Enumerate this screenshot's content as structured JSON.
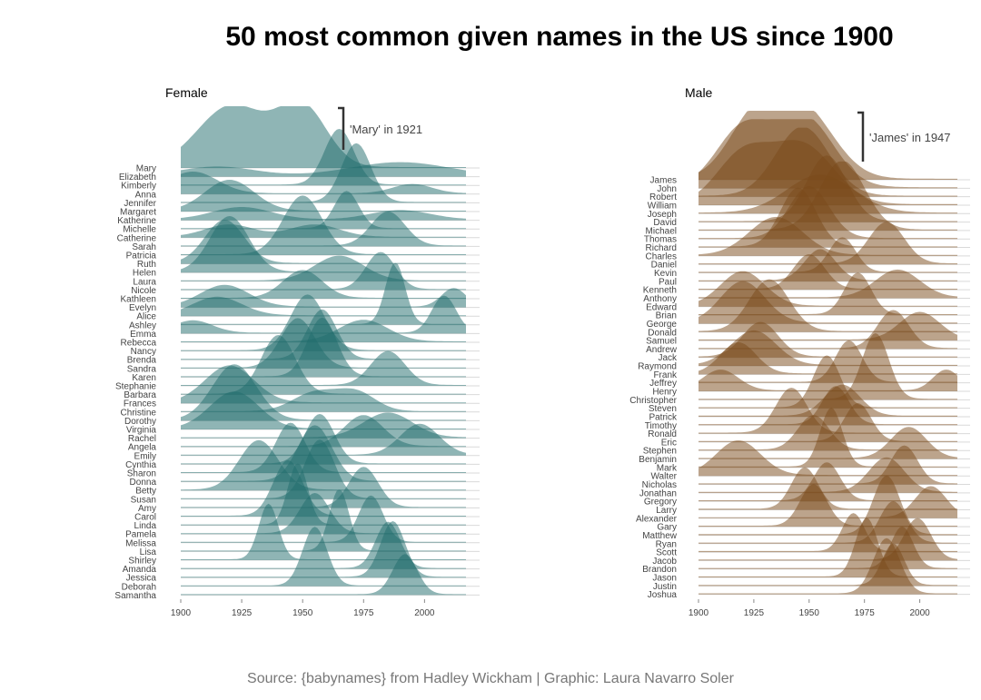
{
  "title": "50 most common given names in the US since 1900",
  "caption": "Source: {babynames} from Hadley Wickham | Graphic: Laura Navarro Soler",
  "chart_data": [
    {
      "type": "area",
      "panel": "Female",
      "color": "#1f6b6b",
      "xlim": [
        1900,
        2017
      ],
      "xticks": [
        1900,
        1925,
        1950,
        1975,
        2000
      ],
      "grid": false,
      "annotation": {
        "text": "'Mary' in 1921",
        "year": 1921
      },
      "series": [
        {
          "name": "Mary",
          "peaks": [
            [
              1921,
              1.0,
              14
            ],
            [
              1950,
              0.95,
              10
            ]
          ]
        },
        {
          "name": "Elizabeth",
          "peaks": [
            [
              1915,
              0.15,
              15
            ],
            [
              1990,
              0.22,
              20
            ]
          ]
        },
        {
          "name": "Kimberly",
          "peaks": [
            [
              1965,
              0.9,
              6
            ]
          ]
        },
        {
          "name": "Anna",
          "peaks": [
            [
              1905,
              0.35,
              10
            ],
            [
              1995,
              0.15,
              8
            ]
          ]
        },
        {
          "name": "Jennifer",
          "peaks": [
            [
              1972,
              0.95,
              6
            ]
          ]
        },
        {
          "name": "Margaret",
          "peaks": [
            [
              1920,
              0.5,
              10
            ]
          ]
        },
        {
          "name": "Katherine",
          "peaks": [
            [
              1925,
              0.2,
              12
            ],
            [
              1990,
              0.15,
              12
            ]
          ]
        },
        {
          "name": "Michelle",
          "peaks": [
            [
              1968,
              0.6,
              5
            ]
          ]
        },
        {
          "name": "Catherine",
          "peaks": [
            [
              1920,
              0.2,
              10
            ],
            [
              1955,
              0.2,
              10
            ]
          ]
        },
        {
          "name": "Sarah",
          "peaks": [
            [
              1985,
              0.55,
              7
            ]
          ]
        },
        {
          "name": "Patricia",
          "peaks": [
            [
              1950,
              0.95,
              8
            ]
          ]
        },
        {
          "name": "Ruth",
          "peaks": [
            [
              1918,
              0.7,
              8
            ]
          ]
        },
        {
          "name": "Helen",
          "peaks": [
            [
              1920,
              0.9,
              8
            ]
          ]
        },
        {
          "name": "Laura",
          "peaks": [
            [
              1965,
              0.4,
              10
            ]
          ]
        },
        {
          "name": "Nicole",
          "peaks": [
            [
              1982,
              0.6,
              6
            ]
          ]
        },
        {
          "name": "Kathleen",
          "peaks": [
            [
              1950,
              0.45,
              8
            ]
          ]
        },
        {
          "name": "Evelyn",
          "peaks": [
            [
              1918,
              0.35,
              10
            ],
            [
              2012,
              0.3,
              5
            ]
          ]
        },
        {
          "name": "Alice",
          "peaks": [
            [
              1915,
              0.3,
              10
            ]
          ]
        },
        {
          "name": "Ashley",
          "peaks": [
            [
              1988,
              1.0,
              4
            ]
          ]
        },
        {
          "name": "Emma",
          "peaks": [
            [
              1905,
              0.2,
              8
            ],
            [
              2008,
              0.6,
              5
            ]
          ]
        },
        {
          "name": "Rebecca",
          "peaks": [
            [
              1975,
              0.35,
              10
            ]
          ]
        },
        {
          "name": "Nancy",
          "peaks": [
            [
              1952,
              0.9,
              7
            ]
          ]
        },
        {
          "name": "Brenda",
          "peaks": [
            [
              1958,
              0.8,
              6
            ]
          ]
        },
        {
          "name": "Sandra",
          "peaks": [
            [
              1948,
              0.8,
              7
            ]
          ]
        },
        {
          "name": "Karen",
          "peaks": [
            [
              1958,
              0.95,
              6
            ]
          ]
        },
        {
          "name": "Stephanie",
          "peaks": [
            [
              1985,
              0.55,
              7
            ]
          ]
        },
        {
          "name": "Barbara",
          "peaks": [
            [
              1940,
              0.95,
              7
            ]
          ]
        },
        {
          "name": "Frances",
          "peaks": [
            [
              1920,
              0.6,
              10
            ]
          ]
        },
        {
          "name": "Christine",
          "peaks": [
            [
              1955,
              0.3,
              9
            ],
            [
              1972,
              0.3,
              8
            ]
          ]
        },
        {
          "name": "Dorothy",
          "peaks": [
            [
              1922,
              0.9,
              9
            ]
          ]
        },
        {
          "name": "Virginia",
          "peaks": [
            [
              1922,
              0.6,
              10
            ]
          ]
        },
        {
          "name": "Rachel",
          "peaks": [
            [
              1985,
              0.4,
              10
            ]
          ]
        },
        {
          "name": "Angela",
          "peaks": [
            [
              1975,
              0.5,
              8
            ]
          ]
        },
        {
          "name": "Emily",
          "peaks": [
            [
              1998,
              0.5,
              8
            ]
          ]
        },
        {
          "name": "Cynthia",
          "peaks": [
            [
              1957,
              0.8,
              6
            ]
          ]
        },
        {
          "name": "Sharon",
          "peaks": [
            [
              1945,
              0.8,
              6
            ]
          ]
        },
        {
          "name": "Donna",
          "peaks": [
            [
              1955,
              0.9,
              7
            ]
          ]
        },
        {
          "name": "Betty",
          "peaks": [
            [
              1932,
              0.8,
              8
            ]
          ]
        },
        {
          "name": "Susan",
          "peaks": [
            [
              1957,
              0.95,
              6
            ]
          ]
        },
        {
          "name": "Amy",
          "peaks": [
            [
              1975,
              0.65,
              6
            ]
          ]
        },
        {
          "name": "Carol",
          "peaks": [
            [
              1944,
              0.9,
              6
            ]
          ]
        },
        {
          "name": "Linda",
          "peaks": [
            [
              1948,
              1.0,
              4
            ]
          ]
        },
        {
          "name": "Pamela",
          "peaks": [
            [
              1955,
              0.65,
              6
            ]
          ]
        },
        {
          "name": "Melissa",
          "peaks": [
            [
              1978,
              0.75,
              5
            ]
          ]
        },
        {
          "name": "Lisa",
          "peaks": [
            [
              1965,
              1.0,
              4
            ]
          ]
        },
        {
          "name": "Shirley",
          "peaks": [
            [
              1936,
              0.9,
              4
            ]
          ]
        },
        {
          "name": "Amanda",
          "peaks": [
            [
              1985,
              0.75,
              5
            ]
          ]
        },
        {
          "name": "Jessica",
          "peaks": [
            [
              1987,
              0.9,
              5
            ]
          ]
        },
        {
          "name": "Deborah",
          "peaks": [
            [
              1955,
              0.95,
              5
            ]
          ]
        },
        {
          "name": "Samantha",
          "peaks": [
            [
              1992,
              0.65,
              5
            ]
          ]
        }
      ]
    },
    {
      "type": "area",
      "panel": "Male",
      "color": "#7a4a1a",
      "xlim": [
        1900,
        2017
      ],
      "xticks": [
        1900,
        1925,
        1950,
        1975,
        2000
      ],
      "grid": false,
      "annotation": {
        "text": "'James' in 1947",
        "year": 1947
      },
      "series": [
        {
          "name": "James",
          "peaks": [
            [
              1947,
              1.0,
              14
            ],
            [
              1925,
              0.8,
              12
            ]
          ]
        },
        {
          "name": "John",
          "peaks": [
            [
              1948,
              1.0,
              13
            ],
            [
              1920,
              0.85,
              12
            ]
          ]
        },
        {
          "name": "Robert",
          "peaks": [
            [
              1947,
              1.0,
              12
            ]
          ]
        },
        {
          "name": "William",
          "peaks": [
            [
              1947,
              0.85,
              14
            ],
            [
              1920,
              0.7,
              12
            ]
          ]
        },
        {
          "name": "Joseph",
          "peaks": [
            [
              1955,
              0.55,
              15
            ]
          ]
        },
        {
          "name": "David",
          "peaks": [
            [
              1958,
              0.95,
              9
            ]
          ]
        },
        {
          "name": "Michael",
          "peaks": [
            [
              1965,
              1.0,
              10
            ]
          ]
        },
        {
          "name": "Thomas",
          "peaks": [
            [
              1950,
              0.75,
              9
            ]
          ]
        },
        {
          "name": "Richard",
          "peaks": [
            [
              1945,
              0.85,
              8
            ]
          ]
        },
        {
          "name": "Charles",
          "peaks": [
            [
              1935,
              0.55,
              12
            ]
          ]
        },
        {
          "name": "Daniel",
          "peaks": [
            [
              1985,
              0.6,
              8
            ]
          ]
        },
        {
          "name": "Kevin",
          "peaks": [
            [
              1965,
              0.5,
              6
            ]
          ]
        },
        {
          "name": "Paul",
          "peaks": [
            [
              1955,
              0.45,
              7
            ]
          ]
        },
        {
          "name": "Kenneth",
          "peaks": [
            [
              1950,
              0.5,
              7
            ]
          ]
        },
        {
          "name": "Anthony",
          "peaks": [
            [
              1990,
              0.4,
              10
            ]
          ]
        },
        {
          "name": "Edward",
          "peaks": [
            [
              1920,
              0.5,
              10
            ]
          ]
        },
        {
          "name": "Brian",
          "peaks": [
            [
              1972,
              0.6,
              6
            ]
          ]
        },
        {
          "name": "George",
          "peaks": [
            [
              1920,
              0.6,
              10
            ]
          ]
        },
        {
          "name": "Donald",
          "peaks": [
            [
              1932,
              0.75,
              9
            ]
          ]
        },
        {
          "name": "Samuel",
          "peaks": [
            [
              2000,
              0.4,
              9
            ]
          ]
        },
        {
          "name": "Andrew",
          "peaks": [
            [
              1988,
              0.55,
              7
            ]
          ]
        },
        {
          "name": "Jack",
          "peaks": [
            [
              1928,
              0.5,
              8
            ]
          ]
        },
        {
          "name": "Raymond",
          "peaks": [
            [
              1925,
              0.5,
              10
            ]
          ]
        },
        {
          "name": "Frank",
          "peaks": [
            [
              1918,
              0.45,
              8
            ]
          ]
        },
        {
          "name": "Jeffrey",
          "peaks": [
            [
              1968,
              0.6,
              6
            ]
          ]
        },
        {
          "name": "Henry",
          "peaks": [
            [
              1910,
              0.3,
              8
            ],
            [
              2012,
              0.3,
              6
            ]
          ]
        },
        {
          "name": "Christopher",
          "peaks": [
            [
              1980,
              0.95,
              6
            ]
          ]
        },
        {
          "name": "Steven",
          "peaks": [
            [
              1958,
              0.75,
              6
            ]
          ]
        },
        {
          "name": "Patrick",
          "peaks": [
            [
              1965,
              0.45,
              8
            ]
          ]
        },
        {
          "name": "Timothy",
          "peaks": [
            [
              1962,
              0.55,
              6
            ]
          ]
        },
        {
          "name": "Ronald",
          "peaks": [
            [
              1942,
              0.65,
              7
            ]
          ]
        },
        {
          "name": "Eric",
          "peaks": [
            [
              1972,
              0.55,
              6
            ]
          ]
        },
        {
          "name": "Stephen",
          "peaks": [
            [
              1952,
              0.5,
              7
            ]
          ]
        },
        {
          "name": "Benjamin",
          "peaks": [
            [
              1995,
              0.45,
              8
            ]
          ]
        },
        {
          "name": "Mark",
          "peaks": [
            [
              1960,
              0.85,
              5
            ]
          ]
        },
        {
          "name": "Walter",
          "peaks": [
            [
              1918,
              0.5,
              10
            ]
          ]
        },
        {
          "name": "Nicholas",
          "peaks": [
            [
              1993,
              0.55,
              6
            ]
          ]
        },
        {
          "name": "Jonathan",
          "peaks": [
            [
              1985,
              0.5,
              8
            ]
          ]
        },
        {
          "name": "Gregory",
          "peaks": [
            [
              1958,
              0.55,
              6
            ]
          ]
        },
        {
          "name": "Larry",
          "peaks": [
            [
              1948,
              0.6,
              6
            ]
          ]
        },
        {
          "name": "Alexander",
          "peaks": [
            [
              2005,
              0.45,
              7
            ]
          ]
        },
        {
          "name": "Gary",
          "peaks": [
            [
              1952,
              0.6,
              6
            ]
          ]
        },
        {
          "name": "Matthew",
          "peaks": [
            [
              1985,
              0.85,
              6
            ]
          ]
        },
        {
          "name": "Ryan",
          "peaks": [
            [
              1988,
              0.6,
              6
            ]
          ]
        },
        {
          "name": "Scott",
          "peaks": [
            [
              1970,
              0.55,
              5
            ]
          ]
        },
        {
          "name": "Jacob",
          "peaks": [
            [
              1999,
              0.6,
              6
            ]
          ]
        },
        {
          "name": "Brandon",
          "peaks": [
            [
              1992,
              0.6,
              5
            ]
          ]
        },
        {
          "name": "Jason",
          "peaks": [
            [
              1976,
              0.85,
              5
            ]
          ]
        },
        {
          "name": "Justin",
          "peaks": [
            [
              1988,
              0.6,
              5
            ]
          ]
        },
        {
          "name": "Joshua",
          "peaks": [
            [
              1985,
              0.8,
              6
            ]
          ]
        }
      ]
    }
  ]
}
